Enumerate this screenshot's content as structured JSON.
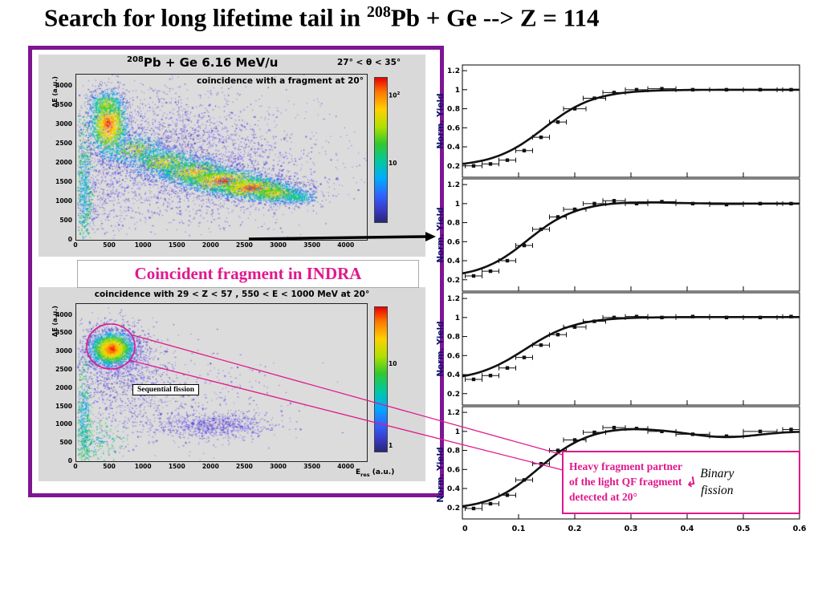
{
  "title": {
    "prefix": "Search for long lifetime tail in  ",
    "iso": "208",
    "rest": "Pb + Ge --> Z = 114"
  },
  "left_panel": {
    "top_plot": {
      "iso": "208",
      "title": "Pb + Ge   6.16 MeV/u",
      "angle_label": "27° < θ < 35°",
      "annotation": "coincidence with a fragment at 20°",
      "ylabel": "ΔE (a.u.)",
      "y_ticks": [
        4000,
        3500,
        3000,
        2500,
        2000,
        1500,
        1000,
        500,
        0
      ],
      "x_ticks": [
        0,
        500,
        1000,
        1500,
        2000,
        2500,
        3000,
        3500,
        4000
      ],
      "colorbar_labels": [
        {
          "base": "10",
          "sup": "2",
          "frac": 0.13
        },
        {
          "base": "10",
          "sup": "",
          "frac": 0.6
        }
      ]
    },
    "middle_label": "Coincident fragment in INDRA",
    "bottom_plot": {
      "annotation": "coincidence with 29 < Z < 57 , 550 < E < 1000 MeV at 20°",
      "ylabel": "ΔE (a.u.)",
      "xlabel_pre": "E",
      "xlabel_sub": "res",
      "xlabel_post": " (a.u.)",
      "seq_label": "Sequential fission",
      "y_ticks": [
        4000,
        3500,
        3000,
        2500,
        2000,
        1500,
        1000,
        500,
        0
      ],
      "x_ticks": [
        0,
        500,
        1000,
        1500,
        2000,
        2500,
        3000,
        3500,
        4000
      ],
      "colorbar_labels": [
        {
          "base": "10",
          "sup": "",
          "frac": 0.4
        },
        {
          "base": "1",
          "sup": "",
          "frac": 0.965
        }
      ]
    }
  },
  "callout": {
    "line1": "Heavy fragment partner",
    "line2": "of the light QF fragment",
    "line3": "detected at 20°",
    "binary1": "Binary",
    "binary2": "fission"
  },
  "icons": {
    "callout_arrow": "↲"
  },
  "colors": {
    "magenta": "#e0188c",
    "purple_border": "#7e1693",
    "axis_blue": "#10106a"
  },
  "palettes": {
    "hot": [
      "#5a4fcf",
      "#4169e1",
      "#1e90ff",
      "#00b4d8",
      "#00c896",
      "#38c438",
      "#90d810",
      "#d8e000",
      "#ffd000",
      "#ff9000",
      "#ff5000",
      "#e80000"
    ],
    "purple": [
      "#7b68ee",
      "#6a5acd",
      "#8470ff",
      "#5d4fd0",
      "#9370db"
    ],
    "cool": [
      "#00b890",
      "#20c850",
      "#00a0e8",
      "#40c8c8"
    ]
  },
  "chart_data": [
    {
      "id": "top_heatmap",
      "type": "heatmap",
      "title": "208Pb + Ge 6.16 MeV/u, 27° < θ < 35°, coincidence with a fragment at 20°",
      "xlabel": "Eres (a.u.)",
      "ylabel": "ΔE (a.u.)",
      "xlim": [
        0,
        4300
      ],
      "ylim": [
        0,
        4300
      ],
      "seed": 7,
      "clusters": [
        {
          "cx": 1400,
          "cy": 2350,
          "sx": 850,
          "sy": 820,
          "n": 2400,
          "palette": "purple"
        },
        {
          "cx": 2300,
          "cy": 1550,
          "sx": 1000,
          "sy": 620,
          "n": 900,
          "palette": "purple"
        },
        {
          "cx": 350,
          "cy": 1000,
          "sx": 260,
          "sy": 550,
          "n": 300,
          "palette": "purple"
        },
        {
          "cx": 110,
          "cy": 1350,
          "sx": 55,
          "sy": 850,
          "n": 650,
          "palette": "cool"
        },
        {
          "cx": 850,
          "cy": 2350,
          "sx": 260,
          "sy": 220,
          "n": 600,
          "palette": "hot",
          "m": 0.62
        },
        {
          "cx": 1300,
          "cy": 2020,
          "sx": 280,
          "sy": 200,
          "n": 800,
          "palette": "hot",
          "m": 0.7
        },
        {
          "cx": 1750,
          "cy": 1760,
          "sx": 300,
          "sy": 190,
          "n": 1000,
          "palette": "hot",
          "m": 0.8
        },
        {
          "cx": 2180,
          "cy": 1540,
          "sx": 320,
          "sy": 170,
          "n": 1300,
          "palette": "hot",
          "m": 1
        },
        {
          "cx": 2600,
          "cy": 1350,
          "sx": 300,
          "sy": 150,
          "n": 1300,
          "palette": "hot",
          "m": 1
        },
        {
          "cx": 2950,
          "cy": 1210,
          "sx": 250,
          "sy": 130,
          "n": 700,
          "palette": "hot",
          "m": 0.72
        },
        {
          "cx": 3250,
          "cy": 1120,
          "sx": 170,
          "sy": 100,
          "n": 280,
          "palette": "hot",
          "m": 0.45
        },
        {
          "cx": 470,
          "cy": 3020,
          "sx": 145,
          "sy": 430,
          "n": 1700,
          "palette": "hot",
          "m": 0.97
        },
        {
          "cx": 430,
          "cy": 3560,
          "sx": 120,
          "sy": 170,
          "n": 280,
          "palette": "hot",
          "m": 0.7
        }
      ]
    },
    {
      "id": "bottom_heatmap",
      "type": "heatmap",
      "title": "coincidence with 29 < Z < 57 , 550 < E < 1000 MeV at 20°",
      "xlabel": "Eres (a.u.)",
      "ylabel": "ΔE (a.u.)",
      "xlim": [
        0,
        4300
      ],
      "ylim": [
        0,
        4300
      ],
      "seed": 13,
      "clusters": [
        {
          "cx": 560,
          "cy": 2950,
          "sx": 330,
          "sy": 470,
          "n": 900,
          "palette": "purple"
        },
        {
          "cx": 650,
          "cy": 2100,
          "sx": 350,
          "sy": 600,
          "n": 450,
          "palette": "purple"
        },
        {
          "cx": 1200,
          "cy": 1700,
          "sx": 850,
          "sy": 750,
          "n": 650,
          "palette": "purple"
        },
        {
          "cx": 2050,
          "cy": 1000,
          "sx": 430,
          "sy": 170,
          "n": 800,
          "palette": "purple"
        },
        {
          "cx": 110,
          "cy": 1150,
          "sx": 55,
          "sy": 700,
          "n": 500,
          "palette": "cool"
        },
        {
          "cx": 300,
          "cy": 600,
          "sx": 200,
          "sy": 350,
          "n": 220,
          "palette": "cool",
          "m": 0.6
        },
        {
          "cx": 520,
          "cy": 3080,
          "sx": 165,
          "sy": 235,
          "n": 2400,
          "palette": "hot",
          "m": 1
        }
      ]
    },
    {
      "id": "yield_panels",
      "type": "line",
      "ylabel": "Norm. Yield",
      "xlim": [
        0,
        0.6
      ],
      "ylim": [
        0.08,
        1.26
      ],
      "x_ticks": [
        0,
        0.1,
        0.2,
        0.3,
        0.4,
        0.5,
        0.6
      ],
      "y_ticks": [
        0.2,
        0.4,
        0.6,
        0.8,
        1,
        1.2
      ],
      "panels": [
        {
          "curve": {
            "base": 0.19,
            "plateau": 1.0,
            "x0": 0.145,
            "k": 0.045
          },
          "points": [
            [
              0.02,
              0.2,
              0.015
            ],
            [
              0.05,
              0.22,
              0.015
            ],
            [
              0.08,
              0.26,
              0.015
            ],
            [
              0.11,
              0.36,
              0.015
            ],
            [
              0.14,
              0.5,
              0.015
            ],
            [
              0.17,
              0.66,
              0.015
            ],
            [
              0.2,
              0.8,
              0.02
            ],
            [
              0.235,
              0.91,
              0.02
            ],
            [
              0.27,
              0.97,
              0.02
            ],
            [
              0.31,
              1.0,
              0.02
            ],
            [
              0.355,
              1.01,
              0.025
            ],
            [
              0.41,
              1.0,
              0.03
            ],
            [
              0.47,
              1.0,
              0.03
            ],
            [
              0.53,
              1.0,
              0.03
            ],
            [
              0.585,
              1.0,
              0.015
            ]
          ]
        },
        {
          "curve": {
            "base": 0.22,
            "plateau": 1.0,
            "x0": 0.115,
            "k": 0.042,
            "bump": {
              "c": 0.29,
              "a": 0.02,
              "w": 0.1
            }
          },
          "points": [
            [
              0.02,
              0.24,
              0.015
            ],
            [
              0.05,
              0.29,
              0.015
            ],
            [
              0.08,
              0.4,
              0.015
            ],
            [
              0.11,
              0.56,
              0.015
            ],
            [
              0.14,
              0.73,
              0.015
            ],
            [
              0.17,
              0.86,
              0.015
            ],
            [
              0.2,
              0.94,
              0.02
            ],
            [
              0.235,
              1.0,
              0.02
            ],
            [
              0.27,
              1.03,
              0.02
            ],
            [
              0.31,
              1.0,
              0.02
            ],
            [
              0.355,
              1.02,
              0.025
            ],
            [
              0.41,
              1.0,
              0.03
            ],
            [
              0.47,
              0.99,
              0.03
            ],
            [
              0.53,
              1.0,
              0.03
            ],
            [
              0.585,
              1.0,
              0.015
            ]
          ]
        },
        {
          "curve": {
            "base": 0.33,
            "plateau": 1.005,
            "x0": 0.112,
            "k": 0.045
          },
          "points": [
            [
              0.02,
              0.35,
              0.015
            ],
            [
              0.05,
              0.39,
              0.015
            ],
            [
              0.08,
              0.47,
              0.015
            ],
            [
              0.11,
              0.58,
              0.015
            ],
            [
              0.14,
              0.71,
              0.015
            ],
            [
              0.17,
              0.82,
              0.015
            ],
            [
              0.2,
              0.9,
              0.02
            ],
            [
              0.235,
              0.96,
              0.02
            ],
            [
              0.27,
              1.0,
              0.02
            ],
            [
              0.31,
              1.01,
              0.02
            ],
            [
              0.355,
              1.0,
              0.025
            ],
            [
              0.41,
              1.01,
              0.03
            ],
            [
              0.47,
              1.0,
              0.03
            ],
            [
              0.53,
              1.0,
              0.03
            ],
            [
              0.585,
              1.01,
              0.015
            ]
          ]
        },
        {
          "curve": {
            "base": 0.18,
            "plateau": 1.0,
            "x0": 0.132,
            "k": 0.042,
            "bump": {
              "c": 0.28,
              "a": 0.04,
              "w": 0.09
            },
            "dip": {
              "c": 0.47,
              "d": 0.06,
              "w": 0.08
            }
          },
          "points": [
            [
              0.02,
              0.19,
              0.015
            ],
            [
              0.05,
              0.24,
              0.015
            ],
            [
              0.08,
              0.33,
              0.015
            ],
            [
              0.11,
              0.49,
              0.015
            ],
            [
              0.14,
              0.66,
              0.015
            ],
            [
              0.17,
              0.8,
              0.015
            ],
            [
              0.2,
              0.91,
              0.02
            ],
            [
              0.235,
              0.99,
              0.02
            ],
            [
              0.27,
              1.04,
              0.02
            ],
            [
              0.31,
              1.03,
              0.02
            ],
            [
              0.355,
              1.0,
              0.025
            ],
            [
              0.41,
              0.97,
              0.03
            ],
            [
              0.47,
              0.95,
              0.03
            ],
            [
              0.53,
              1.0,
              0.03
            ],
            [
              0.585,
              1.02,
              0.015
            ]
          ]
        }
      ]
    }
  ]
}
